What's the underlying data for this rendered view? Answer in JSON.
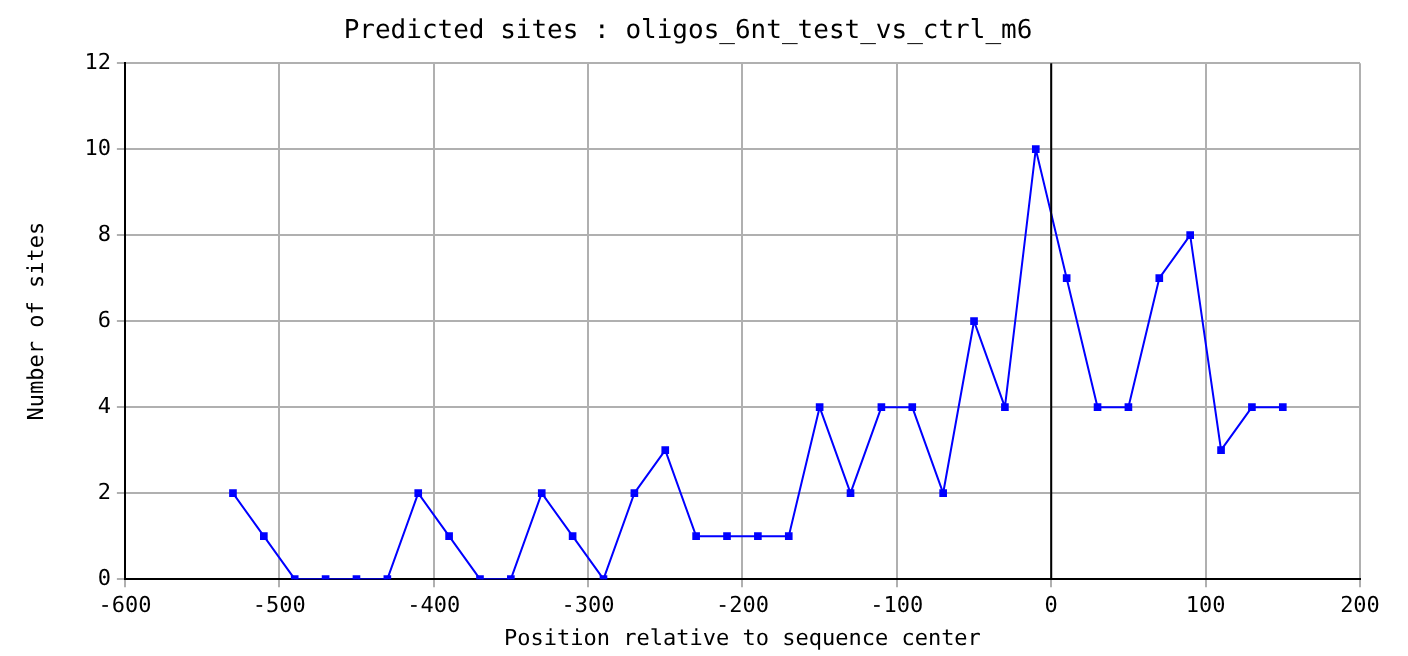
{
  "chart_data": {
    "type": "line",
    "title": "Predicted sites : oligos_6nt_test_vs_ctrl_m6",
    "xlabel": "Position relative to sequence center",
    "ylabel": "Number of sites",
    "x": [
      -530,
      -510,
      -490,
      -470,
      -450,
      -430,
      -410,
      -390,
      -370,
      -350,
      -330,
      -310,
      -290,
      -270,
      -250,
      -230,
      -210,
      -190,
      -170,
      -150,
      -130,
      -110,
      -90,
      -70,
      -50,
      -30,
      -10,
      10,
      30,
      50,
      70,
      90,
      110,
      130,
      150
    ],
    "series": [
      {
        "color": "#0000ff",
        "values": [
          2,
          1,
          0,
          0,
          0,
          0,
          2,
          1,
          0,
          0,
          2,
          1,
          0,
          2,
          3,
          1,
          1,
          1,
          1,
          4,
          2,
          4,
          4,
          2,
          6,
          4,
          10,
          7,
          4,
          4,
          7,
          8,
          3,
          4,
          4
        ]
      }
    ],
    "xlim": [
      -600,
      200
    ],
    "xticks": [
      -600,
      -500,
      -400,
      -300,
      -200,
      -100,
      0,
      100,
      200
    ],
    "ylim": [
      0,
      12
    ],
    "yticks": [
      0,
      2,
      4,
      6,
      8,
      10,
      12
    ],
    "ref_lines": [
      {
        "axis": "x",
        "value": 0,
        "color": "#000000"
      }
    ],
    "grid": true,
    "legend": false,
    "marker": "square",
    "line_style": "solid"
  }
}
